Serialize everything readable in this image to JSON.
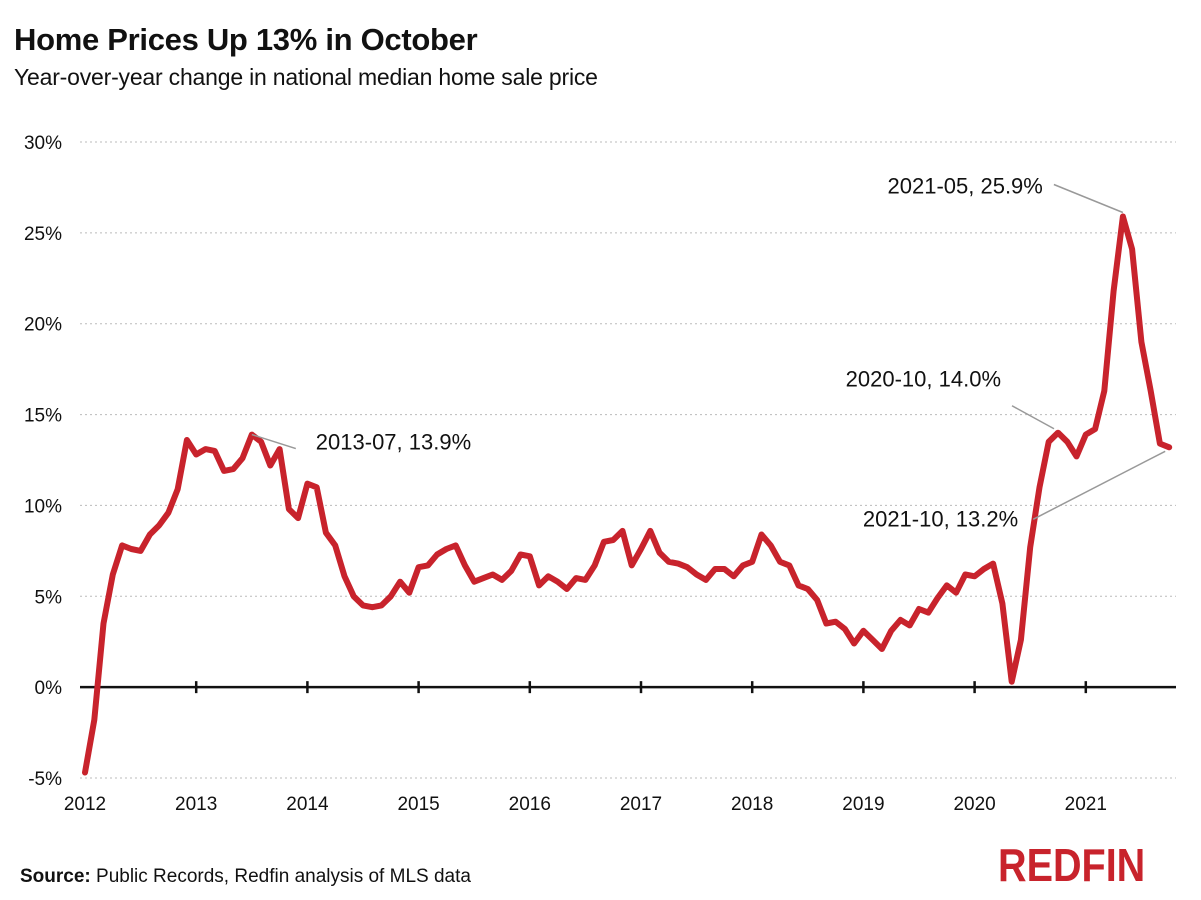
{
  "header": {
    "title": "Home Prices Up 13% in October",
    "subtitle": "Year-over-year change in national median home sale price"
  },
  "footer": {
    "source_label": "Source:",
    "source_text": "Public Records, Redfin analysis of MLS data",
    "logo_text": "REDFIN"
  },
  "colors": {
    "line": "#c8232c",
    "grid": "#bbbbbb",
    "zero_axis": "#111111",
    "leader": "#999999",
    "logo": "#c8232c"
  },
  "chart_data": {
    "type": "line",
    "title": "Home Prices Up 13% in October",
    "subtitle": "Year-over-year change in national median home sale price",
    "xlabel": "",
    "ylabel": "",
    "ylim": [
      -5,
      30
    ],
    "yticks": [
      -5,
      0,
      5,
      10,
      15,
      20,
      25,
      30
    ],
    "ytick_labels": [
      "-5%",
      "0%",
      "5%",
      "10%",
      "15%",
      "20%",
      "25%",
      "30%"
    ],
    "xticks": [
      "2012",
      "2013",
      "2014",
      "2015",
      "2016",
      "2017",
      "2018",
      "2019",
      "2020",
      "2021"
    ],
    "grid": "horizontal dotted",
    "x_start": "2012-01",
    "x_end": "2021-10",
    "series": [
      {
        "values": [
          -4.7,
          -1.8,
          3.5,
          6.2,
          7.8,
          7.6,
          7.5,
          8.4,
          8.9,
          9.6,
          10.9,
          13.6,
          12.8,
          13.1,
          13.0,
          11.9,
          12.0,
          12.6,
          13.9,
          13.5,
          12.2,
          13.1,
          9.8,
          9.3,
          11.2,
          11.0,
          8.5,
          7.8,
          6.1,
          5.0,
          4.5,
          4.4,
          4.5,
          5.0,
          5.8,
          5.2,
          6.6,
          6.7,
          7.3,
          7.6,
          7.8,
          6.7,
          5.8,
          6.0,
          6.2,
          5.9,
          6.4,
          7.3,
          7.2,
          5.6,
          6.1,
          5.8,
          5.4,
          6.0,
          5.9,
          6.7,
          8.0,
          8.1,
          8.6,
          6.7,
          7.6,
          8.6,
          7.4,
          6.9,
          6.8,
          6.6,
          6.2,
          5.9,
          6.5,
          6.5,
          6.1,
          6.7,
          6.9,
          8.4,
          7.8,
          6.9,
          6.7,
          5.6,
          5.4,
          4.8,
          3.5,
          3.6,
          3.2,
          2.4,
          3.1,
          2.6,
          2.1,
          3.1,
          3.7,
          3.4,
          4.3,
          4.1,
          4.9,
          5.6,
          5.2,
          6.2,
          6.1,
          6.5,
          6.8,
          4.6,
          0.3,
          2.6,
          7.7,
          11.0,
          13.5,
          14.0,
          13.5,
          12.7,
          13.9,
          14.2,
          16.3,
          21.8,
          25.9,
          24.1,
          19.0,
          16.3,
          13.4,
          13.2
        ]
      }
    ],
    "annotations": [
      {
        "label": "2013-07, 13.9%",
        "x": "2013-07",
        "y": 13.9
      },
      {
        "label": "2020-10, 14.0%",
        "x": "2020-10",
        "y": 14.0
      },
      {
        "label": "2021-05, 25.9%",
        "x": "2021-05",
        "y": 25.9
      },
      {
        "label": "2021-10, 13.2%",
        "x": "2021-10",
        "y": 13.2
      }
    ]
  }
}
